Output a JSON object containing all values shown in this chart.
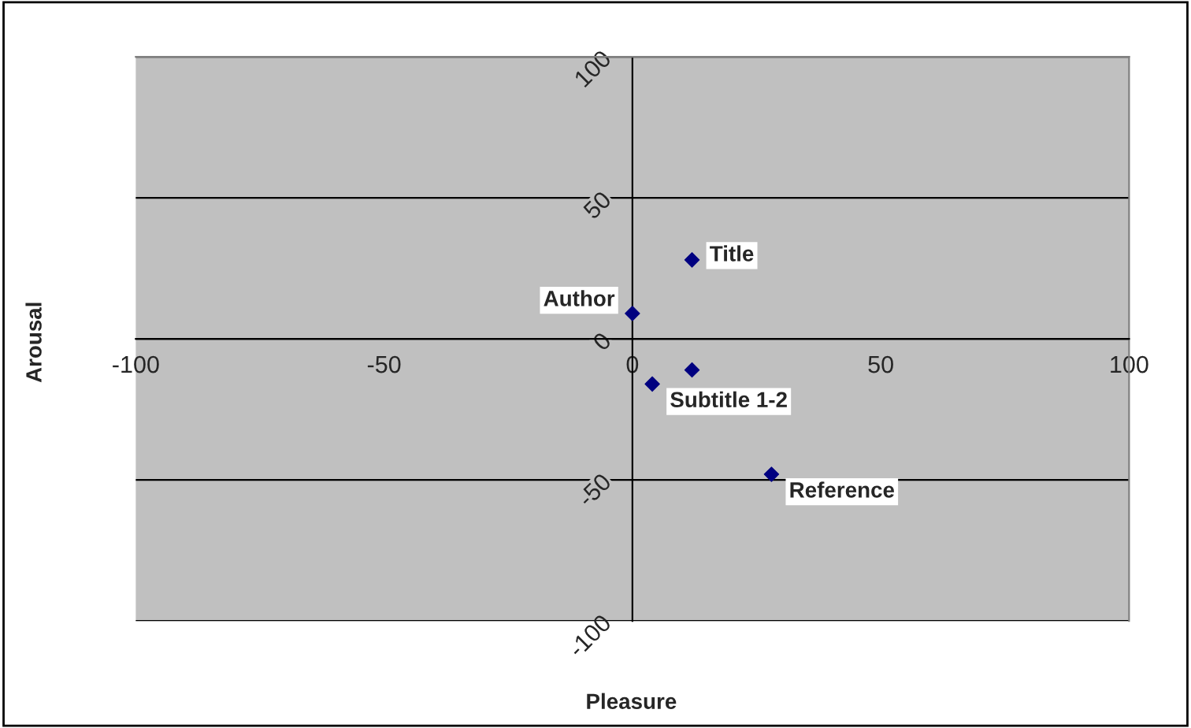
{
  "chart_data": {
    "type": "scatter",
    "xlabel": "Pleasure",
    "ylabel": "Arousal",
    "x": [
      12,
      0,
      12,
      4,
      28
    ],
    "series": [
      {
        "color": "#000080",
        "values": [
          28,
          9,
          -11,
          -16,
          -48
        ]
      }
    ],
    "annotations": [
      {
        "text": "Title",
        "x": 12,
        "y": 28
      },
      {
        "text": "Author",
        "x": 0,
        "y": 9
      },
      {
        "text": "Subtitle 1-2",
        "x": 4,
        "y": -16
      },
      {
        "text": "Reference",
        "x": 28,
        "y": -48
      }
    ],
    "xlim": [
      -100,
      100
    ],
    "ylim": [
      -100,
      100
    ],
    "xticks": [
      -100,
      -50,
      0,
      50,
      100
    ],
    "yticks": [
      -100,
      -50,
      0,
      50,
      100
    ],
    "grid": "y",
    "marker": "diamond",
    "legend": false
  }
}
